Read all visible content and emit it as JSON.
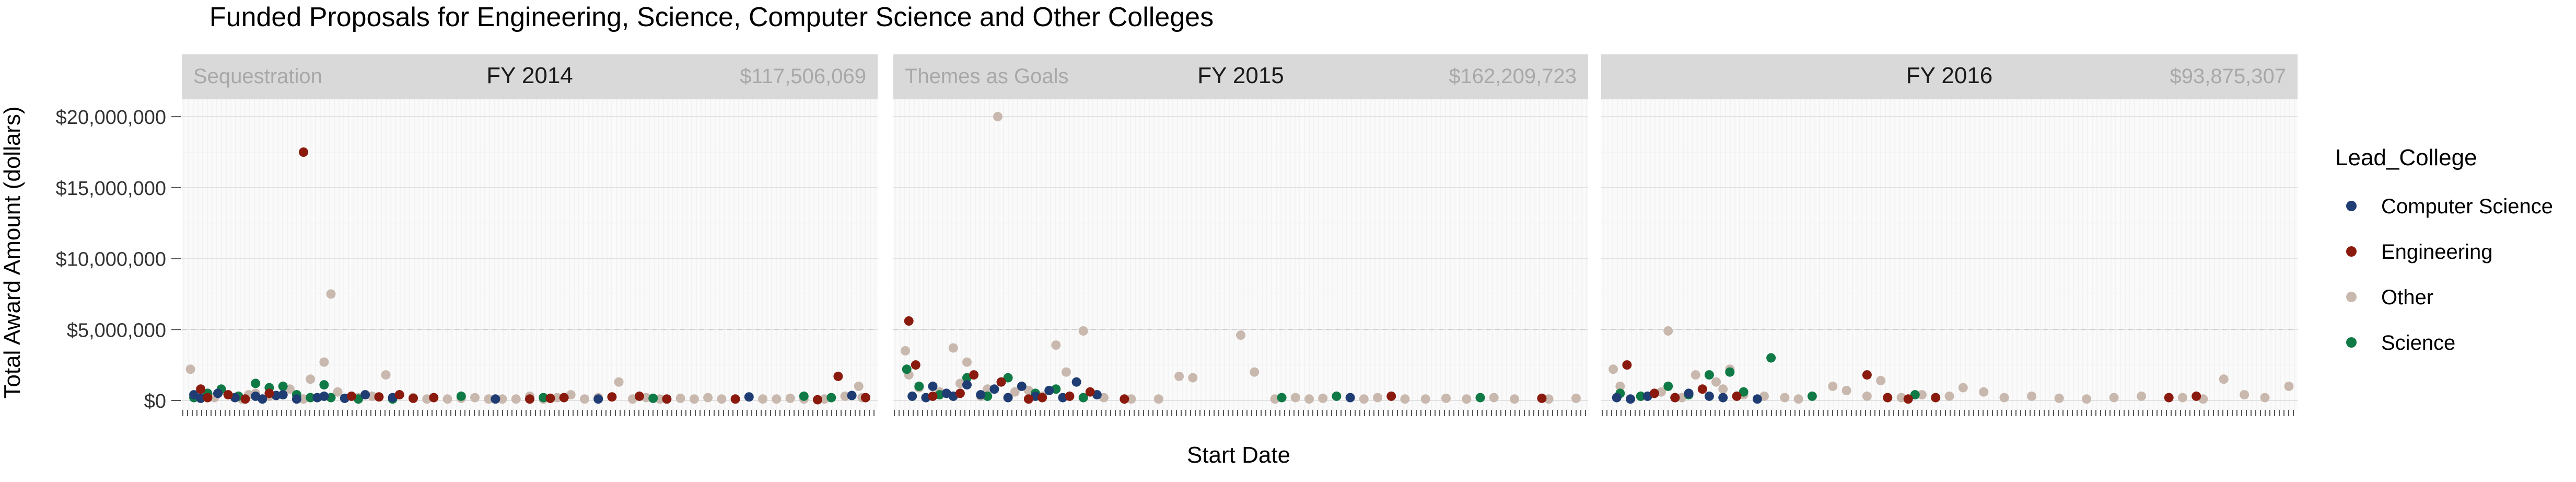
{
  "chart_data": {
    "type": "scatter",
    "title": "Funded Proposals for Engineering, Science, Computer Science and Other Colleges",
    "xlabel": "Start Date",
    "ylabel": "Total Award Amount (dollars)",
    "ylim": [
      0,
      21000000
    ],
    "yticks": [
      0,
      5000000,
      10000000,
      15000000,
      20000000
    ],
    "ytick_labels": [
      "$0",
      "$5,000,000",
      "$10,000,000",
      "$15,000,000",
      "$20,000,000"
    ],
    "grid": true,
    "legend": {
      "title": "Lead_College",
      "position": "right",
      "entries": [
        "Computer Science",
        "Engineering",
        "Other",
        "Science"
      ]
    },
    "colors": {
      "Computer Science": "#1f3d73",
      "Engineering": "#8b1a0e",
      "Other": "#c9b8ae",
      "Science": "#0f7a45"
    },
    "panels": [
      {
        "strip": "FY 2014",
        "note_left": "Sequestration",
        "note_right": "$117,506,069",
        "series": [
          {
            "name": "Computer Science",
            "x": [
              0.01,
              0.02,
              0.045,
              0.07,
              0.1,
              0.11,
              0.13,
              0.14,
              0.16,
              0.19,
              0.2,
              0.23,
              0.26,
              0.3,
              0.45,
              0.6,
              0.82,
              0.97
            ],
            "y": [
              400000,
              150000,
              500000,
              200000,
              300000,
              100000,
              350000,
              400000,
              100000,
              200000,
              300000,
              150000,
              400000,
              200000,
              100000,
              100000,
              250000,
              350000
            ]
          },
          {
            "name": "Engineering",
            "x": [
              0.02,
              0.03,
              0.06,
              0.085,
              0.12,
              0.17,
              0.24,
              0.28,
              0.31,
              0.33,
              0.36,
              0.5,
              0.53,
              0.55,
              0.62,
              0.66,
              0.7,
              0.8,
              0.92,
              0.95,
              0.99
            ],
            "y": [
              800000,
              200000,
              400000,
              100000,
              500000,
              17500000,
              300000,
              250000,
              400000,
              150000,
              200000,
              100000,
              150000,
              200000,
              250000,
              300000,
              100000,
              100000,
              50000,
              1700000,
              200000
            ]
          },
          {
            "name": "Other",
            "x": [
              0.005,
              0.02,
              0.04,
              0.05,
              0.08,
              0.09,
              0.1,
              0.12,
              0.15,
              0.17,
              0.18,
              0.2,
              0.21,
              0.22,
              0.25,
              0.27,
              0.29,
              0.31,
              0.33,
              0.35,
              0.38,
              0.4,
              0.42,
              0.44,
              0.46,
              0.48,
              0.5,
              0.52,
              0.54,
              0.56,
              0.58,
              0.6,
              0.63,
              0.65,
              0.67,
              0.69,
              0.72,
              0.74,
              0.76,
              0.78,
              0.84,
              0.86,
              0.88,
              0.9,
              0.93,
              0.96,
              0.98,
              0.985
            ],
            "y": [
              2200000,
              300000,
              200000,
              700000,
              100000,
              400000,
              500000,
              300000,
              800000,
              100000,
              1500000,
              2700000,
              7500000,
              600000,
              200000,
              300000,
              1800000,
              400000,
              200000,
              100000,
              100000,
              150000,
              200000,
              100000,
              100000,
              100000,
              300000,
              100000,
              200000,
              400000,
              100000,
              200000,
              1300000,
              100000,
              200000,
              100000,
              150000,
              100000,
              200000,
              100000,
              100000,
              100000,
              150000,
              100000,
              100000,
              300000,
              1000000,
              200000
            ]
          },
          {
            "name": "Science",
            "x": [
              0.01,
              0.03,
              0.05,
              0.075,
              0.1,
              0.12,
              0.14,
              0.16,
              0.18,
              0.2,
              0.21,
              0.25,
              0.3,
              0.4,
              0.52,
              0.68,
              0.9,
              0.94
            ],
            "y": [
              200000,
              500000,
              800000,
              300000,
              1200000,
              900000,
              1000000,
              400000,
              200000,
              1100000,
              200000,
              100000,
              100000,
              300000,
              200000,
              150000,
              300000,
              200000
            ]
          }
        ]
      },
      {
        "strip": "FY 2015",
        "note_left": "Themes as Goals",
        "note_right": "$162,209,723",
        "series": [
          {
            "name": "Computer Science",
            "x": [
              0.02,
              0.04,
              0.05,
              0.07,
              0.08,
              0.1,
              0.12,
              0.14,
              0.16,
              0.18,
              0.2,
              0.22,
              0.24,
              0.26,
              0.29,
              0.66
            ],
            "y": [
              300000,
              200000,
              1000000,
              500000,
              300000,
              1100000,
              400000,
              800000,
              200000,
              1000000,
              300000,
              700000,
              200000,
              1300000,
              400000,
              200000
            ]
          },
          {
            "name": "Engineering",
            "x": [
              0.015,
              0.025,
              0.05,
              0.09,
              0.11,
              0.15,
              0.19,
              0.21,
              0.25,
              0.28,
              0.33,
              0.72,
              0.94
            ],
            "y": [
              5600000,
              2500000,
              300000,
              500000,
              1800000,
              1300000,
              100000,
              200000,
              300000,
              600000,
              100000,
              300000,
              150000
            ]
          },
          {
            "name": "Other",
            "x": [
              0.01,
              0.015,
              0.03,
              0.06,
              0.08,
              0.09,
              0.1,
              0.12,
              0.13,
              0.145,
              0.17,
              0.19,
              0.21,
              0.23,
              0.245,
              0.27,
              0.3,
              0.34,
              0.38,
              0.41,
              0.43,
              0.5,
              0.52,
              0.55,
              0.58,
              0.6,
              0.62,
              0.68,
              0.7,
              0.74,
              0.77,
              0.8,
              0.83,
              0.87,
              0.9,
              0.95,
              0.99
            ],
            "y": [
              3500000,
              1800000,
              900000,
              600000,
              3700000,
              1200000,
              2700000,
              300000,
              800000,
              20000000,
              600000,
              700000,
              300000,
              3900000,
              2000000,
              4900000,
              200000,
              100000,
              100000,
              1700000,
              1600000,
              4600000,
              2000000,
              100000,
              200000,
              100000,
              150000,
              100000,
              200000,
              100000,
              100000,
              150000,
              100000,
              200000,
              100000,
              100000,
              150000
            ]
          },
          {
            "name": "Science",
            "x": [
              0.012,
              0.03,
              0.06,
              0.1,
              0.13,
              0.16,
              0.2,
              0.23,
              0.27,
              0.56,
              0.64,
              0.85
            ],
            "y": [
              2200000,
              1000000,
              400000,
              1600000,
              300000,
              1600000,
              500000,
              800000,
              200000,
              200000,
              300000,
              200000
            ]
          }
        ]
      },
      {
        "strip": "FY 2016",
        "note_left": "",
        "note_right": "$93,875,307",
        "series": [
          {
            "name": "Computer Science",
            "x": [
              0.015,
              0.035,
              0.06,
              0.1,
              0.12,
              0.15,
              0.17,
              0.22
            ],
            "y": [
              200000,
              100000,
              300000,
              200000,
              500000,
              300000,
              200000,
              100000
            ]
          },
          {
            "name": "Engineering",
            "x": [
              0.03,
              0.07,
              0.1,
              0.14,
              0.19,
              0.38,
              0.41,
              0.44,
              0.48,
              0.82,
              0.86
            ],
            "y": [
              2500000,
              500000,
              200000,
              800000,
              300000,
              1800000,
              200000,
              100000,
              200000,
              200000,
              300000
            ]
          },
          {
            "name": "Other",
            "x": [
              0.01,
              0.02,
              0.05,
              0.08,
              0.09,
              0.11,
              0.13,
              0.16,
              0.17,
              0.18,
              0.2,
              0.23,
              0.26,
              0.28,
              0.33,
              0.35,
              0.38,
              0.4,
              0.43,
              0.46,
              0.5,
              0.52,
              0.55,
              0.58,
              0.62,
              0.66,
              0.7,
              0.74,
              0.78,
              0.84,
              0.87,
              0.9,
              0.93,
              0.96,
              0.995
            ],
            "y": [
              2200000,
              1000000,
              300000,
              600000,
              4900000,
              200000,
              1800000,
              1300000,
              800000,
              2200000,
              400000,
              300000,
              200000,
              100000,
              1000000,
              700000,
              300000,
              1400000,
              200000,
              400000,
              300000,
              900000,
              600000,
              200000,
              300000,
              150000,
              100000,
              200000,
              300000,
              200000,
              100000,
              1500000,
              400000,
              200000,
              1000000
            ]
          },
          {
            "name": "Science",
            "x": [
              0.02,
              0.05,
              0.09,
              0.12,
              0.15,
              0.18,
              0.2,
              0.24,
              0.3,
              0.45
            ],
            "y": [
              500000,
              300000,
              1000000,
              400000,
              1800000,
              2000000,
              600000,
              3000000,
              300000,
              400000
            ]
          }
        ]
      }
    ]
  }
}
